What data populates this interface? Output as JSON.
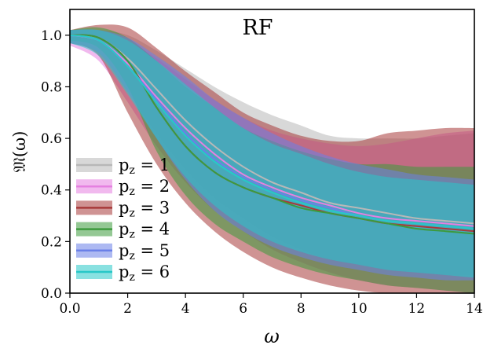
{
  "chart_data": {
    "type": "line",
    "title": "RF",
    "xlabel": "ω",
    "ylabel": "𝔐(ω)",
    "xlim": [
      0,
      14
    ],
    "ylim": [
      0,
      1.1
    ],
    "xticks": [
      "0.0",
      "2",
      "4",
      "6",
      "8",
      "10",
      "12",
      "14"
    ],
    "yticks": [
      "0.0",
      "0.2",
      "0.4",
      "0.6",
      "0.8",
      "1.0"
    ],
    "grid": false,
    "legend_position": "lower-left",
    "series": [
      {
        "name": "p_z = 1",
        "legend_main": "p",
        "legend_sub": "z",
        "legend_rest": " = 1",
        "color": "#b8b8b8",
        "x": [
          0,
          1,
          2,
          3,
          4,
          5,
          6,
          7,
          8,
          9,
          10,
          11,
          12,
          13,
          14
        ],
        "mean": [
          1.0,
          0.99,
          0.91,
          0.79,
          0.67,
          0.57,
          0.49,
          0.43,
          0.39,
          0.35,
          0.33,
          0.31,
          0.29,
          0.28,
          0.27
        ],
        "upper": [
          1.02,
          1.02,
          1.0,
          0.94,
          0.87,
          0.8,
          0.74,
          0.69,
          0.65,
          0.61,
          0.6,
          0.6,
          0.6,
          0.61,
          0.62
        ],
        "lower": [
          0.97,
          0.93,
          0.78,
          0.62,
          0.48,
          0.37,
          0.29,
          0.22,
          0.17,
          0.13,
          0.11,
          0.09,
          0.08,
          0.07,
          0.07
        ]
      },
      {
        "name": "p_z = 2",
        "legend_main": "p",
        "legend_sub": "z",
        "legend_rest": " = 2",
        "color": "#e580e0",
        "x": [
          0,
          1,
          2,
          3,
          4,
          5,
          6,
          7,
          8,
          9,
          10,
          11,
          12,
          13,
          14
        ],
        "mean": [
          1.0,
          0.98,
          0.89,
          0.76,
          0.64,
          0.54,
          0.46,
          0.41,
          0.37,
          0.34,
          0.31,
          0.29,
          0.28,
          0.27,
          0.26
        ],
        "upper": [
          1.02,
          1.02,
          0.98,
          0.91,
          0.83,
          0.75,
          0.68,
          0.63,
          0.6,
          0.58,
          0.57,
          0.58,
          0.6,
          0.62,
          0.63
        ],
        "lower": [
          0.96,
          0.9,
          0.74,
          0.57,
          0.43,
          0.32,
          0.24,
          0.17,
          0.12,
          0.08,
          0.05,
          0.03,
          0.02,
          0.01,
          0.0
        ]
      },
      {
        "name": "p_z = 3",
        "legend_main": "p",
        "legend_sub": "z",
        "legend_rest": " = 3",
        "color": "#a83a3a",
        "x": [
          0,
          1,
          2,
          3,
          4,
          5,
          6,
          7,
          8,
          9,
          10,
          11,
          12,
          13,
          14
        ],
        "mean": [
          1.0,
          0.99,
          0.9,
          0.72,
          0.57,
          0.47,
          0.41,
          0.37,
          0.34,
          0.31,
          0.29,
          0.27,
          0.26,
          0.25,
          0.24
        ],
        "upper": [
          1.02,
          1.04,
          1.03,
          0.95,
          0.86,
          0.78,
          0.7,
          0.65,
          0.61,
          0.59,
          0.59,
          0.62,
          0.63,
          0.64,
          0.64
        ],
        "lower": [
          0.97,
          0.92,
          0.7,
          0.5,
          0.35,
          0.24,
          0.16,
          0.1,
          0.06,
          0.03,
          0.01,
          0.0,
          0.0,
          0.0,
          0.0
        ]
      },
      {
        "name": "p_z = 4",
        "legend_main": "p",
        "legend_sub": "z",
        "legend_rest": " = 4",
        "color": "#3d9a3d",
        "x": [
          0,
          1,
          2,
          3,
          4,
          5,
          6,
          7,
          8,
          9,
          10,
          11,
          12,
          13,
          14
        ],
        "mean": [
          1.0,
          0.99,
          0.9,
          0.72,
          0.57,
          0.47,
          0.41,
          0.37,
          0.33,
          0.31,
          0.29,
          0.27,
          0.25,
          0.24,
          0.23
        ],
        "upper": [
          1.02,
          1.03,
          0.99,
          0.9,
          0.8,
          0.72,
          0.64,
          0.59,
          0.55,
          0.52,
          0.5,
          0.5,
          0.49,
          0.49,
          0.49
        ],
        "lower": [
          0.98,
          0.95,
          0.8,
          0.55,
          0.38,
          0.27,
          0.2,
          0.14,
          0.1,
          0.07,
          0.05,
          0.03,
          0.02,
          0.01,
          0.0
        ]
      },
      {
        "name": "p_z = 5",
        "legend_main": "p",
        "legend_sub": "z",
        "legend_rest": " = 5",
        "color": "#6a80e8",
        "x": [
          0,
          1,
          2,
          3,
          4,
          5,
          6,
          7,
          8,
          9,
          10,
          11,
          12,
          13,
          14
        ],
        "mean": [
          1.0,
          0.98,
          0.88,
          0.75,
          0.62,
          0.52,
          0.45,
          0.4,
          0.36,
          0.33,
          0.3,
          0.28,
          0.27,
          0.26,
          0.25
        ],
        "upper": [
          1.02,
          1.02,
          0.99,
          0.92,
          0.84,
          0.75,
          0.68,
          0.62,
          0.57,
          0.53,
          0.5,
          0.48,
          0.46,
          0.45,
          0.44
        ],
        "lower": [
          0.97,
          0.93,
          0.78,
          0.6,
          0.44,
          0.32,
          0.24,
          0.18,
          0.14,
          0.11,
          0.09,
          0.07,
          0.06,
          0.05,
          0.05
        ]
      },
      {
        "name": "p_z = 6",
        "legend_main": "p",
        "legend_sub": "z",
        "legend_rest": " = 6",
        "color": "#28c8c8",
        "x": [
          0,
          1,
          2,
          3,
          4,
          5,
          6,
          7,
          8,
          9,
          10,
          11,
          12,
          13,
          14
        ],
        "mean": [
          1.0,
          0.98,
          0.88,
          0.74,
          0.61,
          0.51,
          0.44,
          0.39,
          0.35,
          0.32,
          0.3,
          0.28,
          0.27,
          0.26,
          0.25
        ],
        "upper": [
          1.02,
          1.02,
          0.98,
          0.9,
          0.81,
          0.72,
          0.64,
          0.58,
          0.54,
          0.5,
          0.47,
          0.45,
          0.44,
          0.43,
          0.42
        ],
        "lower": [
          0.97,
          0.92,
          0.77,
          0.6,
          0.45,
          0.34,
          0.26,
          0.2,
          0.16,
          0.13,
          0.11,
          0.09,
          0.08,
          0.07,
          0.06
        ]
      }
    ]
  }
}
